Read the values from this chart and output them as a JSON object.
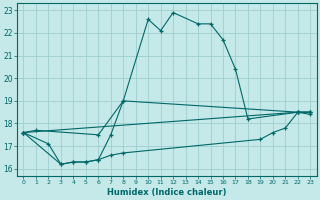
{
  "xlabel": "Humidex (Indice chaleur)",
  "xlim": [
    -0.5,
    23.5
  ],
  "ylim": [
    15.7,
    23.3
  ],
  "yticks": [
    16,
    17,
    18,
    19,
    20,
    21,
    22,
    23
  ],
  "xticks": [
    0,
    1,
    2,
    3,
    4,
    5,
    6,
    7,
    8,
    9,
    10,
    11,
    12,
    13,
    14,
    15,
    16,
    17,
    18,
    19,
    20,
    21,
    22,
    23
  ],
  "background_color": "#c5e8e8",
  "grid_color": "#9ecece",
  "line_color": "#006868",
  "series": [
    {
      "x": [
        0,
        1,
        6,
        8,
        10,
        11,
        12,
        14,
        15,
        16,
        17,
        18,
        22,
        23
      ],
      "y": [
        17.6,
        17.7,
        17.5,
        19.0,
        22.6,
        22.1,
        22.9,
        22.4,
        22.4,
        21.7,
        20.4,
        18.2,
        18.5,
        18.5
      ]
    },
    {
      "x": [
        0,
        22,
        23
      ],
      "y": [
        17.6,
        18.5,
        18.5
      ]
    },
    {
      "x": [
        0,
        3,
        4,
        5,
        6,
        7,
        8,
        19,
        20,
        21,
        22,
        23
      ],
      "y": [
        17.6,
        16.2,
        16.3,
        16.3,
        16.4,
        16.6,
        16.7,
        17.3,
        17.6,
        17.8,
        18.5,
        18.4
      ]
    },
    {
      "x": [
        0,
        2,
        3,
        4,
        5,
        6,
        7,
        8,
        22,
        23
      ],
      "y": [
        17.6,
        17.1,
        16.2,
        16.3,
        16.3,
        16.4,
        17.5,
        19.0,
        18.5,
        18.5
      ]
    }
  ]
}
